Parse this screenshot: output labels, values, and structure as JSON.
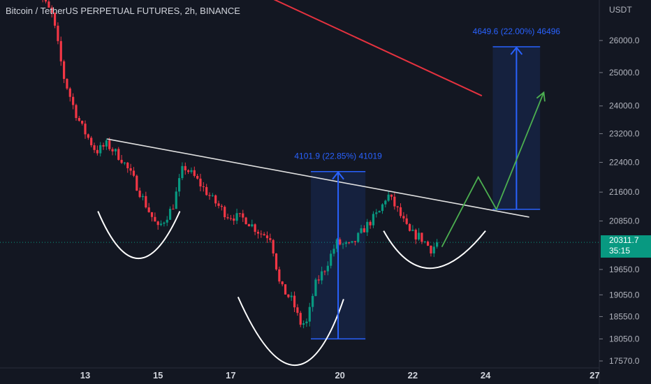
{
  "header": {
    "title": "Bitcoin / TetherUS PERPETUAL FUTURES, 2h, BINANCE"
  },
  "price_axis": {
    "currency": "USDT",
    "current_price": "20311.7",
    "countdown": "35:15"
  },
  "colors": {
    "background": "#131722",
    "up": "#089981",
    "down": "#f23645",
    "measure": "#2962ff",
    "trendline": "#e0e0e0",
    "moving_average": "#e5323f",
    "projection": "#4caf50",
    "pattern_curves": "#ffffff"
  },
  "chart_data": {
    "type": "candlestick",
    "instrument": "Bitcoin / TetherUS PERPETUAL FUTURES",
    "interval": "2h",
    "exchange": "BINANCE",
    "y_axis": {
      "unit": "USDT",
      "ticks": [
        26000.0,
        25000.0,
        24000.0,
        23200.0,
        22400.0,
        21600.0,
        20850.0,
        19650.0,
        19050.0,
        18550.0,
        18050.0,
        17570.0
      ],
      "scale": "log"
    },
    "x_axis": {
      "ticks": [
        "13",
        "15",
        "17",
        "20",
        "22",
        "24",
        "27"
      ],
      "tick_days": [
        13,
        15,
        17,
        20,
        22,
        24,
        27
      ]
    },
    "current_price": 20311.7,
    "candle_path": [
      [
        11.5,
        28000
      ],
      [
        12.1,
        26800
      ],
      [
        12.4,
        24900
      ],
      [
        12.7,
        23900
      ],
      [
        12.9,
        23400
      ],
      [
        13.3,
        22700
      ],
      [
        13.6,
        22900
      ],
      [
        14.0,
        22500
      ],
      [
        14.35,
        21900
      ],
      [
        14.7,
        21200
      ],
      [
        15.0,
        20650
      ],
      [
        15.4,
        21200
      ],
      [
        15.7,
        22300
      ],
      [
        16.0,
        22000
      ],
      [
        16.5,
        21400
      ],
      [
        16.9,
        21000
      ],
      [
        17.4,
        20900
      ],
      [
        17.8,
        20550
      ],
      [
        18.1,
        20450
      ],
      [
        18.35,
        19250
      ],
      [
        18.7,
        18900
      ],
      [
        18.9,
        18400
      ],
      [
        19.1,
        18400
      ],
      [
        19.3,
        19250
      ],
      [
        19.6,
        19700
      ],
      [
        19.9,
        20300
      ],
      [
        20.3,
        20200
      ],
      [
        20.7,
        20700
      ],
      [
        21.1,
        21100
      ],
      [
        21.3,
        21550
      ],
      [
        21.6,
        21100
      ],
      [
        21.9,
        20550
      ],
      [
        22.2,
        20450
      ],
      [
        22.5,
        20150
      ],
      [
        22.7,
        20300
      ]
    ],
    "neckline": {
      "from": [
        13.6,
        23050
      ],
      "to": [
        25.2,
        20950
      ]
    },
    "moving_average": {
      "from": [
        16.0,
        28600
      ],
      "to": [
        23.9,
        24300
      ]
    },
    "measurements": [
      {
        "label": "4101.9 (22.85%) 41019",
        "low": 18050,
        "high": 22150
      },
      {
        "label": "4649.6 (22.00%) 46496",
        "low": 21150,
        "high": 25800
      }
    ],
    "projection_path": [
      [
        22.8,
        20200
      ],
      [
        23.8,
        22000
      ],
      [
        24.3,
        21150
      ],
      [
        25.6,
        24400
      ]
    ],
    "pattern": "inverse head and shoulders"
  }
}
